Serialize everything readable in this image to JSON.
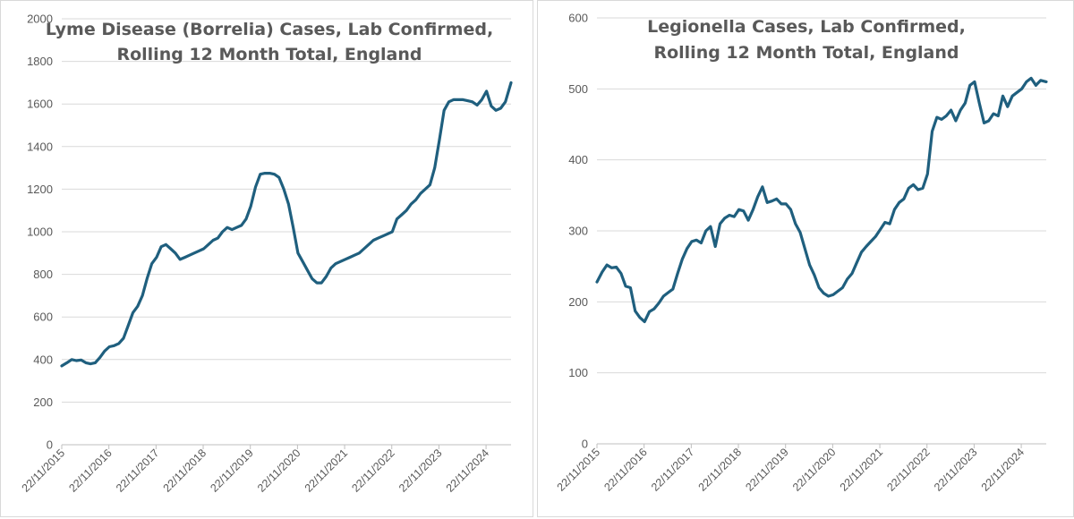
{
  "colors": {
    "line": "#1f5f7e",
    "grid": "#d9d9d9",
    "axis": "#bfbfbf",
    "text": "#595959",
    "title": "#595959"
  },
  "chart_data": [
    {
      "type": "line",
      "title_lines": [
        "Lyme Disease (Borrelia) Cases, Lab Confirmed,",
        "Rolling 12 Month Total, England"
      ],
      "xlabel": "",
      "ylabel": "",
      "ylim": [
        0,
        2000
      ],
      "yticks": [
        0,
        200,
        400,
        600,
        800,
        1000,
        1200,
        1400,
        1600,
        1800,
        2000
      ],
      "xlim": [
        2015.89,
        2025.42
      ],
      "xticks": [
        {
          "label": "22/11/2015",
          "value": 2015.89
        },
        {
          "label": "22/11/2016",
          "value": 2016.89
        },
        {
          "label": "22/11/2017",
          "value": 2017.89
        },
        {
          "label": "22/11/2018",
          "value": 2018.89
        },
        {
          "label": "22/11/2019",
          "value": 2019.89
        },
        {
          "label": "22/11/2020",
          "value": 2020.89
        },
        {
          "label": "22/11/2021",
          "value": 2021.89
        },
        {
          "label": "22/11/2022",
          "value": 2022.89
        },
        {
          "label": "22/11/2023",
          "value": 2023.89
        },
        {
          "label": "22/11/2024",
          "value": 2024.89
        }
      ],
      "grid": true,
      "series": [
        {
          "name": "Lyme Disease (Borrelia) Cases",
          "x": [
            2015.89,
            2016.0,
            2016.1,
            2016.2,
            2016.3,
            2016.4,
            2016.5,
            2016.6,
            2016.7,
            2016.8,
            2016.9,
            2017.0,
            2017.1,
            2017.2,
            2017.3,
            2017.4,
            2017.5,
            2017.6,
            2017.7,
            2017.8,
            2017.9,
            2018.0,
            2018.1,
            2018.2,
            2018.3,
            2018.4,
            2018.5,
            2018.6,
            2018.7,
            2018.8,
            2018.9,
            2019.0,
            2019.1,
            2019.2,
            2019.3,
            2019.4,
            2019.5,
            2019.6,
            2019.7,
            2019.8,
            2019.9,
            2020.0,
            2020.1,
            2020.2,
            2020.3,
            2020.4,
            2020.5,
            2020.6,
            2020.7,
            2020.8,
            2020.9,
            2021.0,
            2021.1,
            2021.2,
            2021.3,
            2021.4,
            2021.5,
            2021.6,
            2021.7,
            2021.8,
            2021.9,
            2022.0,
            2022.1,
            2022.2,
            2022.3,
            2022.4,
            2022.5,
            2022.6,
            2022.7,
            2022.8,
            2022.9,
            2023.0,
            2023.1,
            2023.2,
            2023.3,
            2023.4,
            2023.5,
            2023.6,
            2023.7,
            2023.8,
            2023.9,
            2024.0,
            2024.1,
            2024.2,
            2024.3,
            2024.4,
            2024.5,
            2024.6,
            2024.7,
            2024.8,
            2024.9,
            2025.0,
            2025.1,
            2025.2,
            2025.3,
            2025.42
          ],
          "values": [
            370,
            385,
            400,
            395,
            398,
            385,
            380,
            385,
            410,
            440,
            460,
            465,
            475,
            500,
            560,
            620,
            650,
            700,
            780,
            850,
            880,
            930,
            940,
            920,
            900,
            870,
            880,
            890,
            900,
            910,
            920,
            940,
            960,
            970,
            1000,
            1020,
            1010,
            1020,
            1030,
            1060,
            1120,
            1210,
            1270,
            1275,
            1275,
            1270,
            1255,
            1200,
            1130,
            1020,
            900,
            860,
            820,
            780,
            760,
            760,
            790,
            830,
            850,
            860,
            870,
            880,
            890,
            900,
            920,
            940,
            960,
            970,
            980,
            990,
            1000,
            1060,
            1080,
            1100,
            1130,
            1150,
            1180,
            1200,
            1220,
            1300,
            1430,
            1570,
            1610,
            1620,
            1620,
            1620,
            1615,
            1610,
            1595,
            1620,
            1660,
            1590,
            1570,
            1580,
            1610,
            1700
          ]
        }
      ]
    },
    {
      "type": "line",
      "title_lines": [
        "Legionella Cases, Lab Confirmed,",
        "Rolling 12 Month Total, England"
      ],
      "xlabel": "",
      "ylabel": "",
      "ylim": [
        0,
        600
      ],
      "yticks": [
        0,
        100,
        200,
        300,
        400,
        500,
        600
      ],
      "xlim": [
        2015.89,
        2025.42
      ],
      "xticks": [
        {
          "label": "22/11/2015",
          "value": 2015.89
        },
        {
          "label": "22/11/2016",
          "value": 2016.89
        },
        {
          "label": "22/11/2017",
          "value": 2017.89
        },
        {
          "label": "22/11/2018",
          "value": 2018.89
        },
        {
          "label": "22/11/2019",
          "value": 2019.89
        },
        {
          "label": "22/11/2020",
          "value": 2020.89
        },
        {
          "label": "22/11/2021",
          "value": 2021.89
        },
        {
          "label": "22/11/2022",
          "value": 2022.89
        },
        {
          "label": "22/11/2023",
          "value": 2023.89
        },
        {
          "label": "22/11/2024",
          "value": 2024.89
        }
      ],
      "grid": true,
      "series": [
        {
          "name": "Legionella Cases",
          "x": [
            2015.89,
            2016.0,
            2016.1,
            2016.2,
            2016.3,
            2016.4,
            2016.5,
            2016.6,
            2016.7,
            2016.8,
            2016.9,
            2017.0,
            2017.1,
            2017.2,
            2017.3,
            2017.4,
            2017.5,
            2017.6,
            2017.7,
            2017.8,
            2017.9,
            2018.0,
            2018.1,
            2018.2,
            2018.3,
            2018.4,
            2018.5,
            2018.6,
            2018.7,
            2018.8,
            2018.9,
            2019.0,
            2019.1,
            2019.2,
            2019.3,
            2019.4,
            2019.5,
            2019.6,
            2019.7,
            2019.8,
            2019.9,
            2020.0,
            2020.1,
            2020.2,
            2020.3,
            2020.4,
            2020.5,
            2020.6,
            2020.7,
            2020.8,
            2020.9,
            2021.0,
            2021.1,
            2021.2,
            2021.3,
            2021.4,
            2021.5,
            2021.6,
            2021.7,
            2021.8,
            2021.9,
            2022.0,
            2022.1,
            2022.2,
            2022.3,
            2022.4,
            2022.5,
            2022.6,
            2022.7,
            2022.8,
            2022.9,
            2023.0,
            2023.1,
            2023.2,
            2023.3,
            2023.4,
            2023.5,
            2023.6,
            2023.7,
            2023.8,
            2023.9,
            2024.0,
            2024.1,
            2024.2,
            2024.3,
            2024.4,
            2024.5,
            2024.6,
            2024.7,
            2024.8,
            2024.9,
            2025.0,
            2025.1,
            2025.2,
            2025.3,
            2025.42
          ],
          "values": [
            228,
            242,
            252,
            248,
            249,
            240,
            222,
            220,
            187,
            178,
            172,
            186,
            190,
            198,
            208,
            213,
            218,
            240,
            260,
            275,
            285,
            287,
            283,
            300,
            306,
            278,
            310,
            318,
            322,
            320,
            330,
            328,
            315,
            330,
            348,
            362,
            340,
            342,
            345,
            338,
            338,
            330,
            310,
            298,
            275,
            252,
            238,
            220,
            212,
            208,
            210,
            215,
            220,
            232,
            240,
            255,
            270,
            278,
            285,
            292,
            302,
            312,
            310,
            330,
            340,
            345,
            360,
            365,
            358,
            360,
            380,
            440,
            460,
            457,
            462,
            470,
            455,
            470,
            480,
            505,
            510,
            480,
            452,
            455,
            465,
            462,
            490,
            475,
            490,
            495,
            500,
            510,
            515,
            505,
            512,
            510
          ]
        }
      ]
    }
  ]
}
